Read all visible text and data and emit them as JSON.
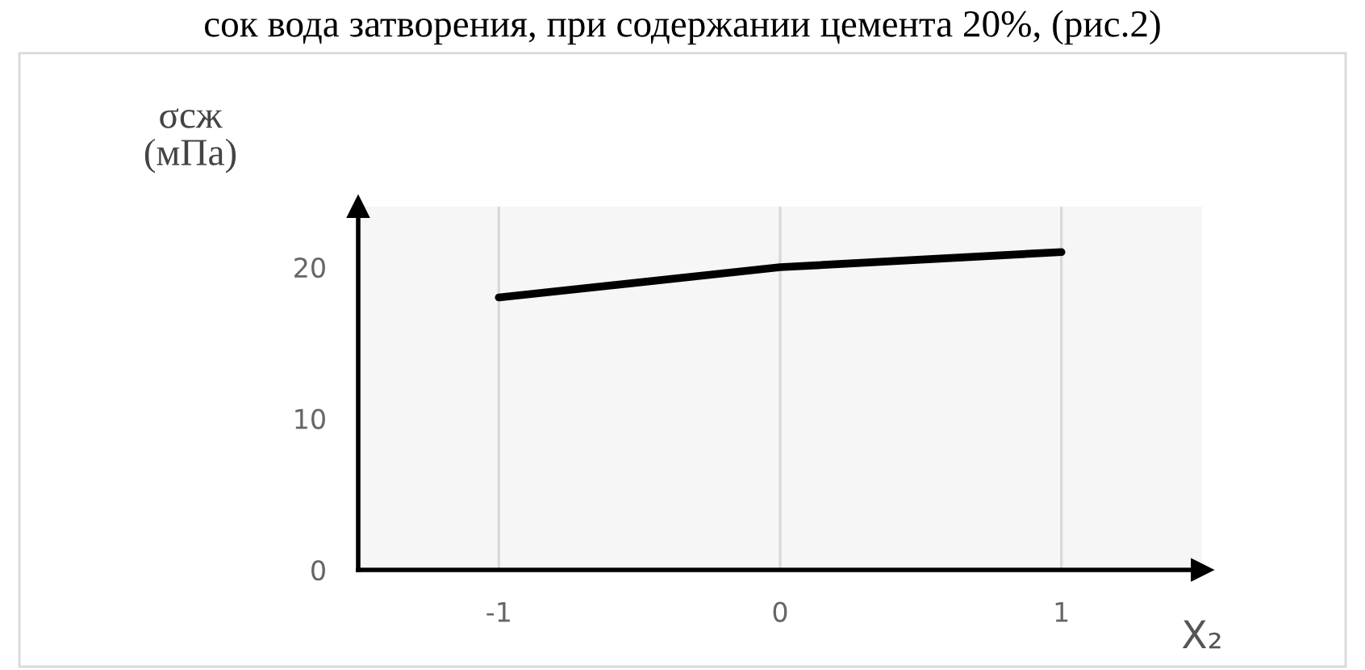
{
  "chart_data": {
    "type": "line",
    "title": "сок вода затворения, при содержании цемента 20%, (рис.2)",
    "ylabel": "σсж\n(мПа)",
    "xlabel": "X₂",
    "x": [
      -1,
      0,
      1
    ],
    "series": [
      {
        "color": "#000000",
        "values": [
          18,
          20,
          21
        ]
      }
    ],
    "xlim": [
      -1.5,
      1.5
    ],
    "xticks": [
      -1,
      0,
      1
    ],
    "ylim": [
      0,
      24
    ],
    "yticks": [
      0,
      10,
      20
    ],
    "grid": "x",
    "marker": "none",
    "line_style": "solid"
  }
}
